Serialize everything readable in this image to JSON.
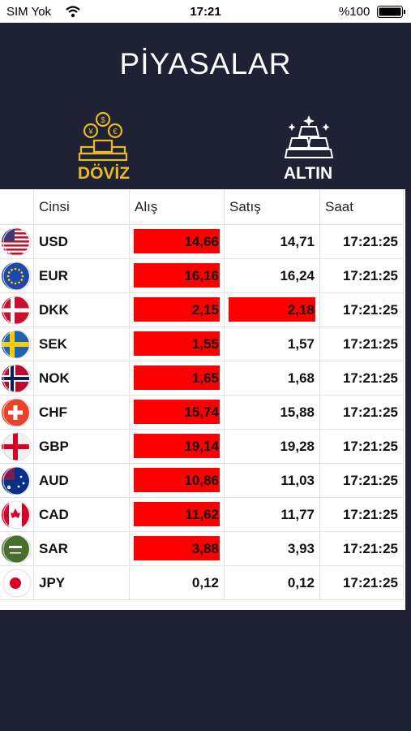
{
  "status_bar": {
    "carrier": "SIM Yok",
    "time": "17:21",
    "battery": "%100"
  },
  "header": {
    "title": "PİYASALAR"
  },
  "tabs": [
    {
      "label": "DÖVİZ",
      "active": true
    },
    {
      "label": "ALTIN",
      "active": false
    }
  ],
  "table": {
    "columns": [
      "Cinsi",
      "Alış",
      "Satış",
      "Saat"
    ],
    "rows": [
      {
        "code": "USD",
        "buy": "14,66",
        "sell": "14,71",
        "time": "17:21:25",
        "buy_changed": true,
        "sell_changed": false
      },
      {
        "code": "EUR",
        "buy": "16,16",
        "sell": "16,24",
        "time": "17:21:25",
        "buy_changed": true,
        "sell_changed": false
      },
      {
        "code": "DKK",
        "buy": "2,15",
        "sell": "2,18",
        "time": "17:21:25",
        "buy_changed": true,
        "sell_changed": true
      },
      {
        "code": "SEK",
        "buy": "1,55",
        "sell": "1,57",
        "time": "17:21:25",
        "buy_changed": true,
        "sell_changed": false
      },
      {
        "code": "NOK",
        "buy": "1,65",
        "sell": "1,68",
        "time": "17:21:25",
        "buy_changed": true,
        "sell_changed": false
      },
      {
        "code": "CHF",
        "buy": "15,74",
        "sell": "15,88",
        "time": "17:21:25",
        "buy_changed": true,
        "sell_changed": false
      },
      {
        "code": "GBP",
        "buy": "19,14",
        "sell": "19,28",
        "time": "17:21:25",
        "buy_changed": true,
        "sell_changed": false
      },
      {
        "code": "AUD",
        "buy": "10,86",
        "sell": "11,03",
        "time": "17:21:25",
        "buy_changed": true,
        "sell_changed": false
      },
      {
        "code": "CAD",
        "buy": "11,62",
        "sell": "11,77",
        "time": "17:21:25",
        "buy_changed": true,
        "sell_changed": false
      },
      {
        "code": "SAR",
        "buy": "3,88",
        "sell": "3,93",
        "time": "17:21:25",
        "buy_changed": true,
        "sell_changed": false
      },
      {
        "code": "JPY",
        "buy": "0,12",
        "sell": "0,12",
        "time": "17:21:25",
        "buy_changed": false,
        "sell_changed": false
      }
    ]
  }
}
